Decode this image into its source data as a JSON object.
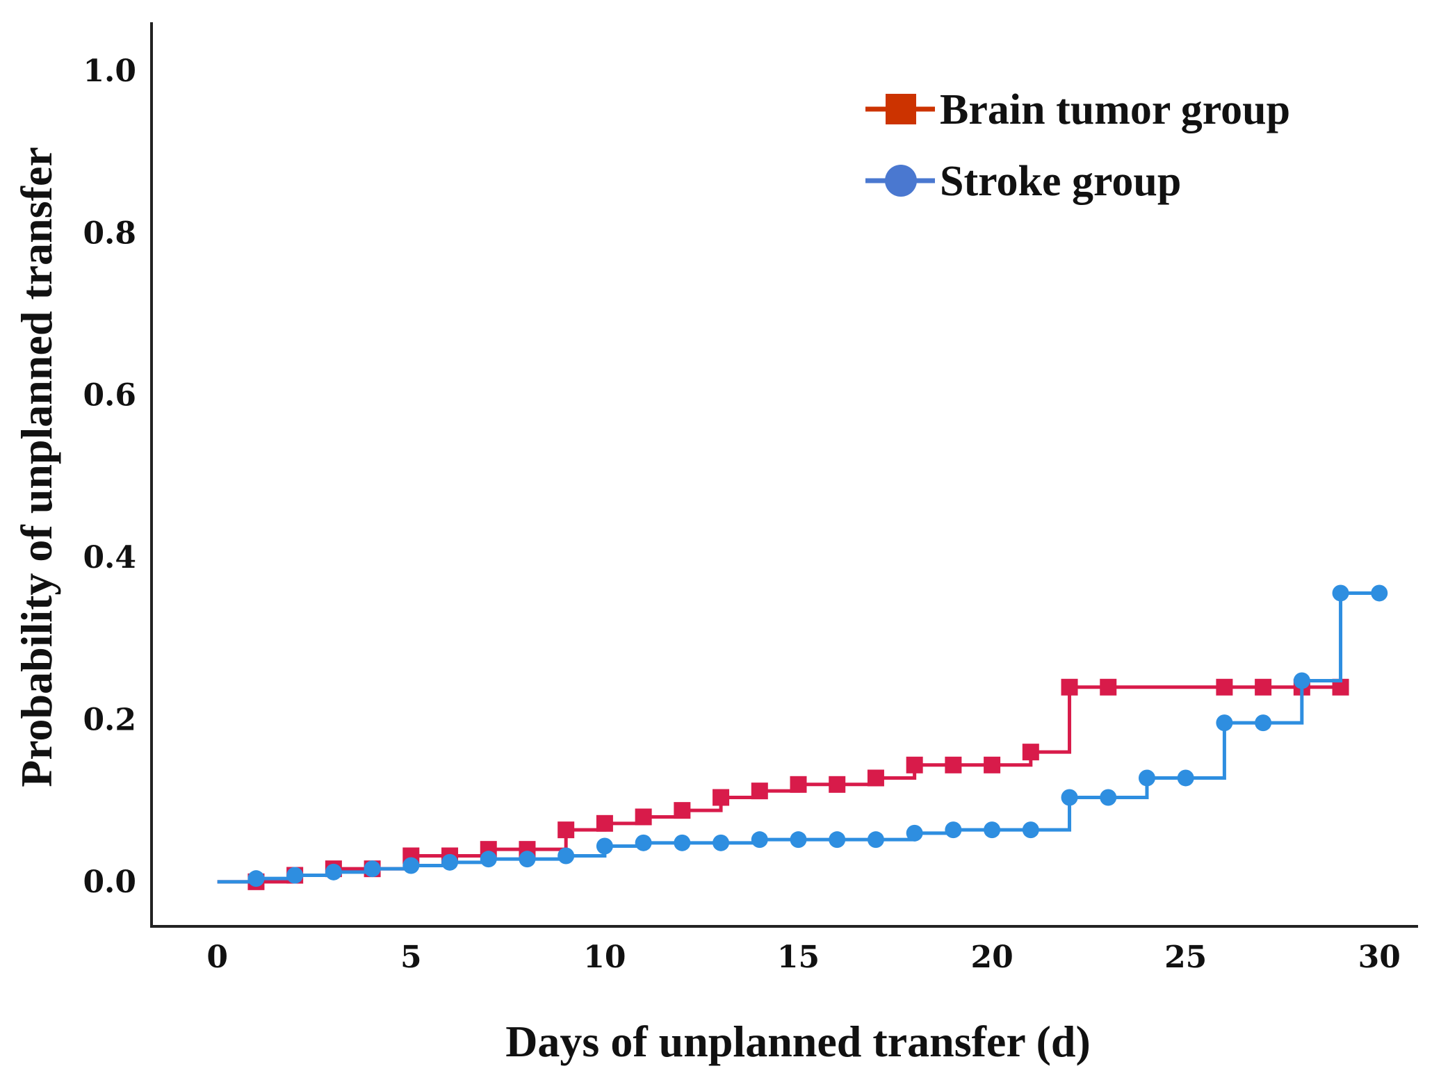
{
  "chart_data": {
    "type": "line",
    "step": true,
    "title": "",
    "xlabel": "Days of unplanned transfer (d)",
    "ylabel": "Probability of unplanned transfer",
    "xlim": [
      -1.7,
      31
    ],
    "ylim": [
      -0.055,
      1.06
    ],
    "xticks": [
      0,
      5,
      10,
      15,
      20,
      25,
      30
    ],
    "xtick_labels": [
      "0",
      "5",
      "10",
      "15",
      "20",
      "25",
      "30"
    ],
    "yticks": [
      0.0,
      0.2,
      0.4,
      0.6,
      0.8,
      1.0
    ],
    "ytick_labels": [
      "0.0",
      "0.2",
      "0.4",
      "0.6",
      "0.8",
      "1.0"
    ],
    "grid": false,
    "legend_position": "top-right",
    "series": [
      {
        "name": "Brain tumor group",
        "color": "#d81b4a",
        "legend_color": "#cc3300",
        "marker": "square",
        "x": [
          1,
          2,
          3,
          4,
          5,
          6,
          7,
          8,
          9,
          10,
          11,
          12,
          13,
          14,
          15,
          16,
          17,
          18,
          19,
          20,
          21,
          22,
          23,
          26,
          27,
          28,
          29
        ],
        "values": [
          0.0,
          0.008,
          0.016,
          0.016,
          0.032,
          0.032,
          0.04,
          0.04,
          0.064,
          0.072,
          0.08,
          0.088,
          0.104,
          0.112,
          0.12,
          0.12,
          0.128,
          0.144,
          0.144,
          0.144,
          0.16,
          0.24,
          0.24,
          0.24,
          0.24,
          0.24,
          0.24
        ]
      },
      {
        "name": "Stroke group",
        "color": "#2e8ee0",
        "legend_color": "#4a78d0",
        "marker": "circle",
        "x": [
          1,
          2,
          3,
          4,
          5,
          6,
          7,
          8,
          9,
          10,
          11,
          12,
          13,
          14,
          15,
          16,
          17,
          18,
          19,
          20,
          21,
          22,
          23,
          24,
          25,
          26,
          27,
          28,
          29,
          30
        ],
        "values": [
          0.004,
          0.008,
          0.012,
          0.016,
          0.02,
          0.024,
          0.028,
          0.028,
          0.032,
          0.044,
          0.048,
          0.048,
          0.048,
          0.052,
          0.052,
          0.052,
          0.052,
          0.06,
          0.064,
          0.064,
          0.064,
          0.104,
          0.104,
          0.128,
          0.128,
          0.196,
          0.196,
          0.248,
          0.356,
          0.356
        ]
      }
    ]
  }
}
